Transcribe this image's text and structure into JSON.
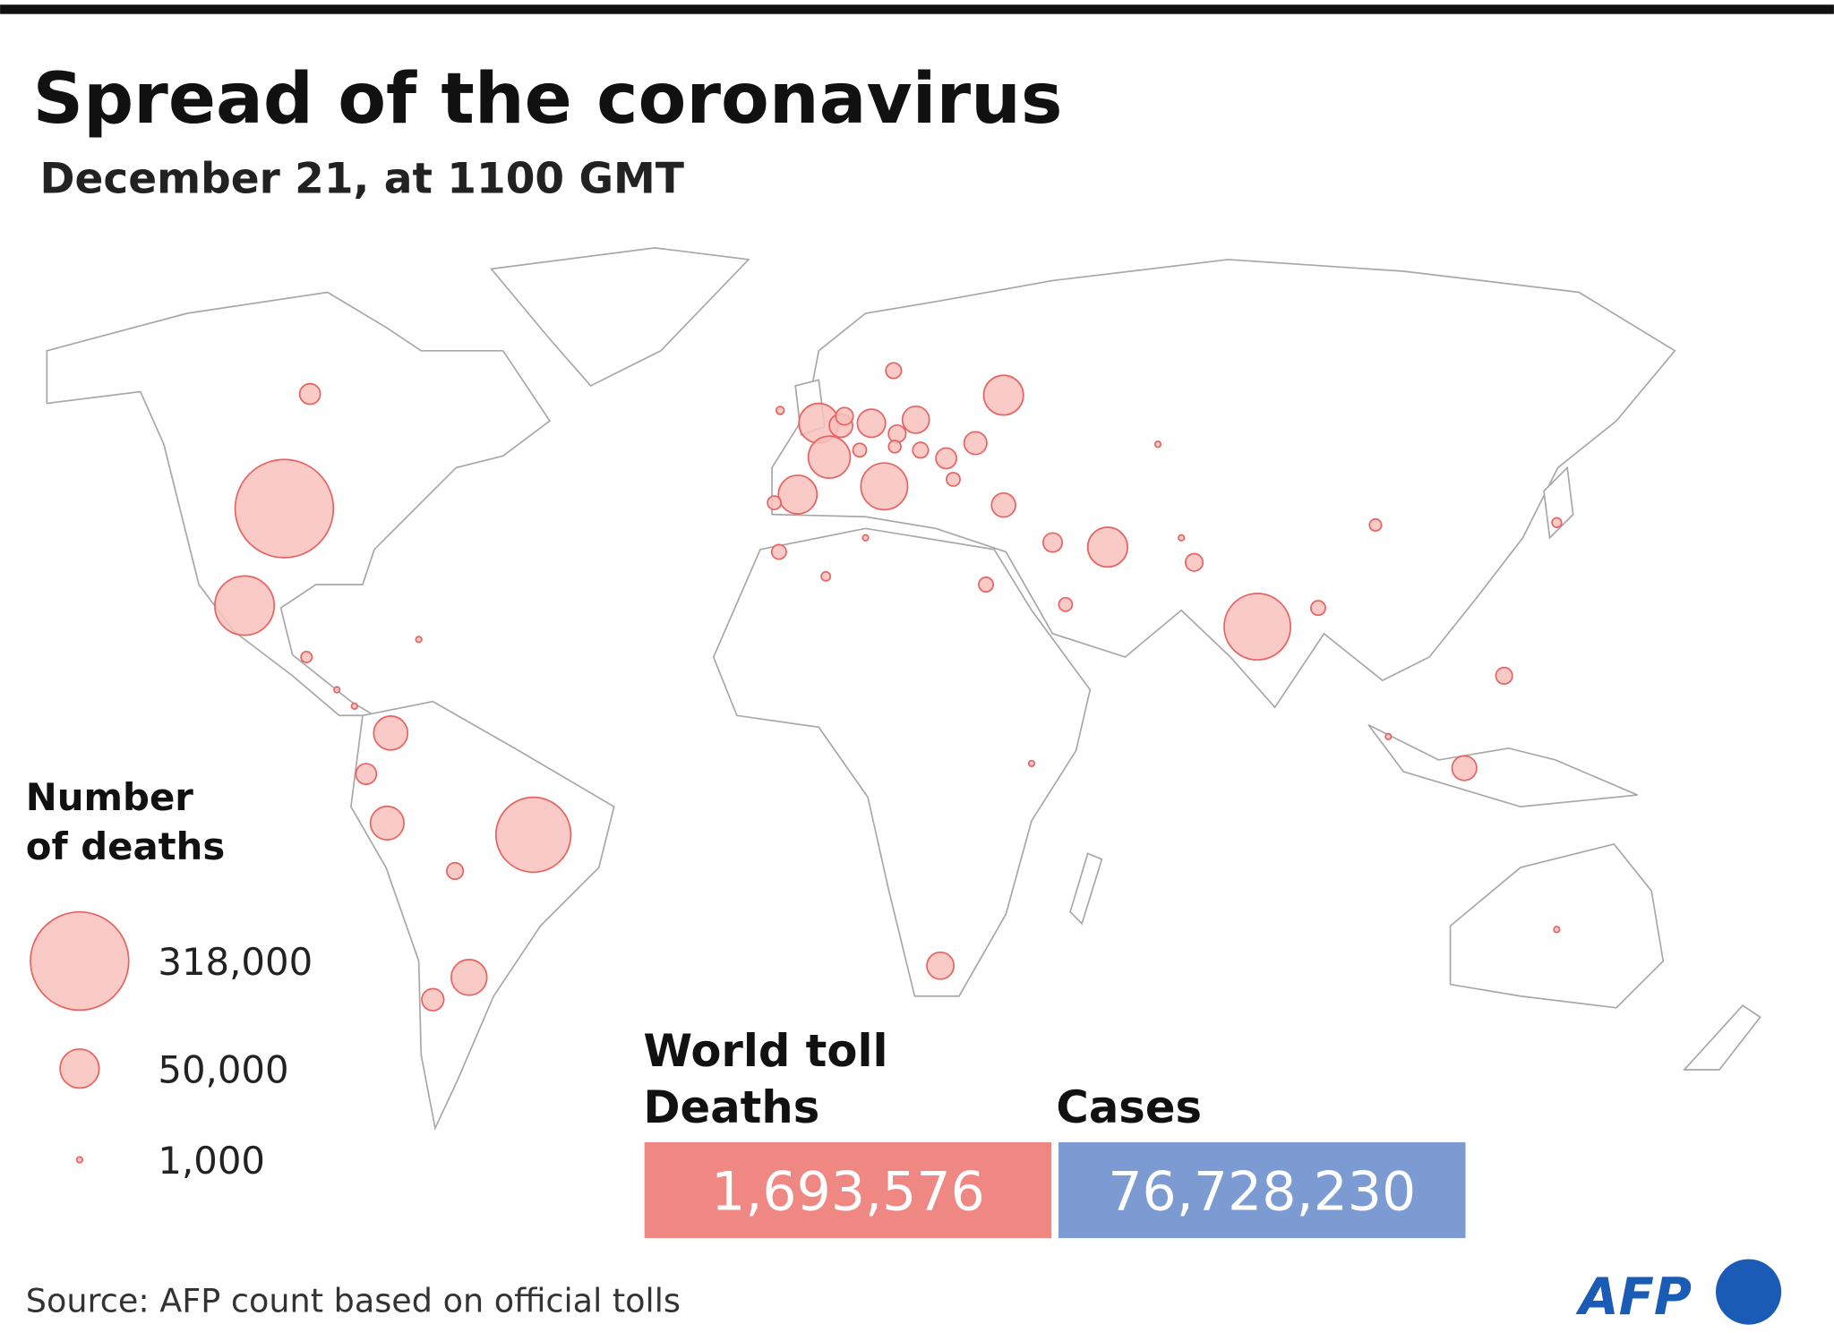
{
  "header": {
    "title": "Spread of the coronavirus",
    "subtitle": "December 21, at 1100 GMT"
  },
  "legend": {
    "title_lines": [
      "Number",
      "of deaths"
    ],
    "items": [
      {
        "value": 318000,
        "label": "318,000"
      },
      {
        "value": 50000,
        "label": "50,000"
      },
      {
        "value": 1000,
        "label": "1,000"
      }
    ]
  },
  "map": {
    "deaths": [
      318000,
      185000,
      145000,
      116000,
      72000,
      52000,
      58000,
      49000,
      52000,
      52000,
      38000,
      42000,
      37000,
      26000,
      24000,
      24000,
      20000,
      17000,
      18000,
      19000,
      14000,
      16000,
      14000,
      14000,
      10000,
      12000,
      9000,
      7000,
      7000,
      10000,
      8000,
      10000,
      8000,
      9000,
      6000,
      7000,
      6000,
      4000,
      2000,
      5000,
      6000,
      6000,
      4700,
      3000,
      900,
      2700,
      1000,
      1000,
      1000,
      1000,
      1000,
      1000,
      1000,
      1000
    ]
  },
  "toll": {
    "title": "World toll",
    "deaths_label": "Deaths",
    "deaths": "1,693,576",
    "cases_label": "Cases",
    "cases": "76,728,230"
  },
  "footer": {
    "source": "Source: AFP count based on official tolls",
    "logo": "AFP"
  }
}
